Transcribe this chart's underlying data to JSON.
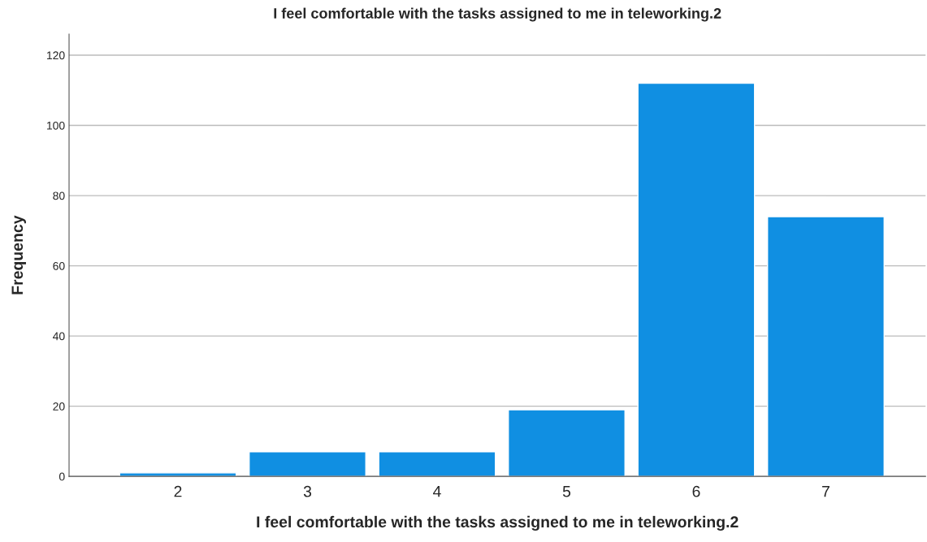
{
  "chart_data": {
    "type": "bar",
    "title": "I feel comfortable with the tasks assigned to me in teleworking.2",
    "xlabel": "I feel comfortable with the tasks assigned to me in teleworking.2",
    "ylabel": "Frequency",
    "categories": [
      "2",
      "3",
      "4",
      "5",
      "6",
      "7"
    ],
    "values": [
      1,
      7,
      7,
      19,
      112,
      74
    ],
    "color": "#108fe2",
    "ylim": [
      0,
      126
    ],
    "yticks": [
      0,
      20,
      40,
      60,
      80,
      100,
      120
    ],
    "grid": "y",
    "legend": false
  }
}
